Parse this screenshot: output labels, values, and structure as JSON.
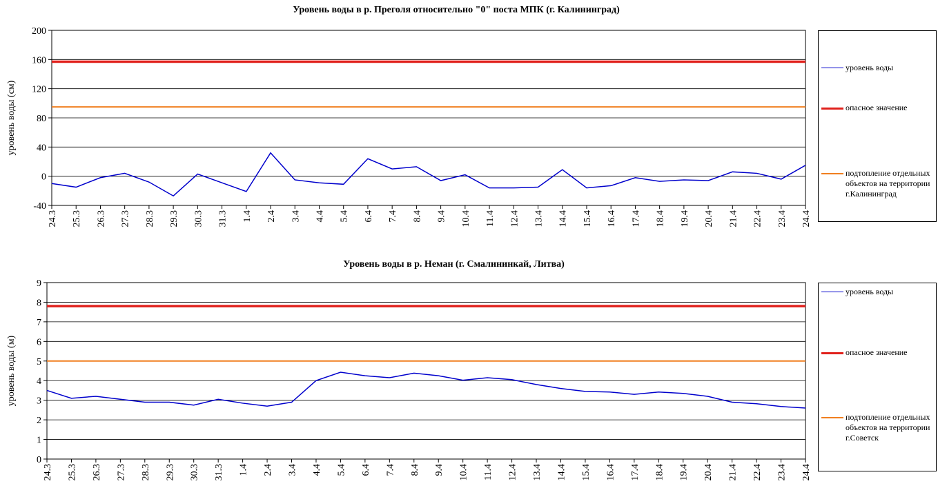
{
  "chart_data": [
    {
      "type": "line",
      "title": "Уровень воды в р. Преголя относительно \"0\" поста МПК (г. Калининград)",
      "y_label": "уровень воды (см)",
      "categories": [
        "24.3",
        "25.3",
        "26.3",
        "27.3",
        "28.3",
        "29.3",
        "30.3",
        "31.3",
        "1.4",
        "2.4",
        "3.4",
        "4.4",
        "5.4",
        "6.4",
        "7.4",
        "8.4",
        "9.4",
        "10.4",
        "11.4",
        "12.4",
        "13.4",
        "14.4",
        "15.4",
        "16.4",
        "17.4",
        "18.4",
        "19.4",
        "20.4",
        "21.4",
        "22.4",
        "23.4",
        "24.4"
      ],
      "series": [
        {
          "name": "уровень воды",
          "color": "#0000cc",
          "values": [
            -10,
            -15,
            -2,
            4,
            -8,
            -27,
            3,
            -9,
            -21,
            32,
            -5,
            -9,
            -11,
            24,
            10,
            13,
            -6,
            2,
            -16,
            -16,
            -15,
            9,
            -16,
            -13,
            -2,
            -7,
            -5,
            -6,
            6,
            4,
            -4,
            15
          ]
        },
        {
          "name": "опасное значение",
          "color": "#e0201b",
          "value": 157
        },
        {
          "name": "подтопление отдельных объектов на территории г.Калининград",
          "color": "#f07f1f",
          "value": 95
        }
      ],
      "ylim": [
        -40,
        200
      ],
      "yticks": [
        -40,
        0,
        40,
        80,
        120,
        160,
        200
      ],
      "grid": true
    },
    {
      "type": "line",
      "title": "Уровень воды в р. Неман (г. Смалининкай, Литва)",
      "y_label": "уровень воды (м)",
      "categories": [
        "24.3",
        "25.3",
        "26.3",
        "27.3",
        "28.3",
        "29.3",
        "30.3",
        "31.3",
        "1.4",
        "2.4",
        "3.4",
        "4.4",
        "5.4",
        "6.4",
        "7.4",
        "8.4",
        "9.4",
        "10.4",
        "11.4",
        "12.4",
        "13.4",
        "14.4",
        "15.4",
        "16.4",
        "17.4",
        "18.4",
        "19.4",
        "20.4",
        "21.4",
        "22.4",
        "23.4",
        "24.4"
      ],
      "series": [
        {
          "name": "уровень воды",
          "color": "#0000cc",
          "values": [
            3.5,
            3.1,
            3.2,
            3.05,
            2.9,
            2.9,
            2.75,
            3.05,
            2.85,
            2.7,
            2.9,
            4.0,
            4.43,
            4.25,
            4.15,
            4.38,
            4.25,
            4.02,
            4.15,
            4.05,
            3.8,
            3.6,
            3.45,
            3.42,
            3.3,
            3.42,
            3.35,
            3.2,
            2.9,
            2.82,
            2.68,
            2.6
          ]
        },
        {
          "name": "опасное значение",
          "color": "#e0201b",
          "value": 7.8
        },
        {
          "name": "подтопление отдельных объектов на территории г.Советск",
          "color": "#f07f1f",
          "value": 5
        }
      ],
      "ylim": [
        0,
        9
      ],
      "yticks": [
        0,
        1,
        2,
        3,
        4,
        5,
        6,
        7,
        8,
        9
      ],
      "grid": true
    }
  ]
}
